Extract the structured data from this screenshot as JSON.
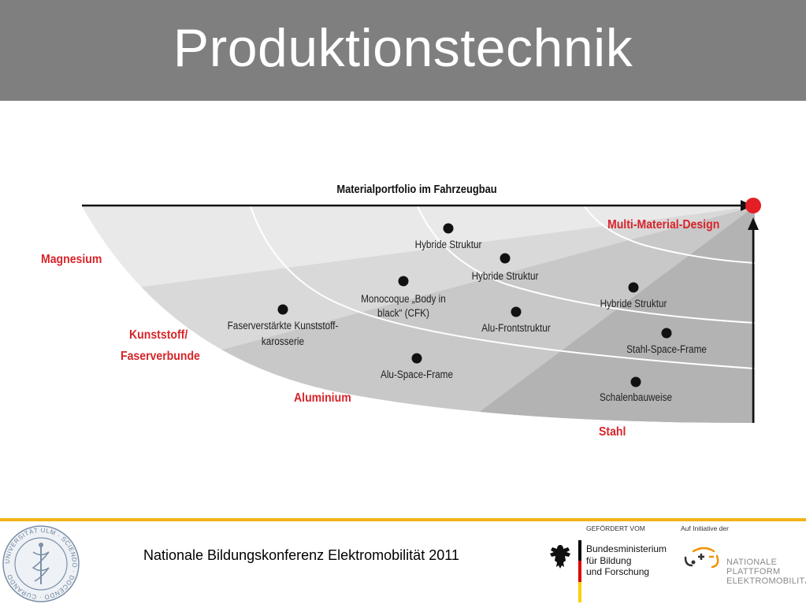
{
  "title": "Produktionstechnik",
  "diagram": {
    "axis_title": "Materialportfolio im Fahrzeugbau",
    "materials": {
      "magnesium": "Magnesium",
      "kunststoff_1": "Kunststoff/",
      "kunststoff_2": "Faserverbunde",
      "aluminium": "Aluminium",
      "stahl": "Stahl",
      "multi": "Multi-Material-Design"
    },
    "points": {
      "hybride_1": "Hybride Struktur",
      "hybride_2": "Hybride Struktur",
      "hybride_3": "Hybride Struktur",
      "monocoque_1": "Monocoque „Body in",
      "monocoque_2": "black“ (CFK)",
      "faser_1": "Faserverstärkte Kunststoff-",
      "faser_2": "karosserie",
      "alu_front": "Alu-Frontstruktur",
      "alu_space": "Alu-Space-Frame",
      "stahl_space": "Stahl-Space-Frame",
      "schalen": "Schalenbauweise"
    },
    "colors": {
      "accent_red": "#d7252b",
      "arrow": "#111111",
      "dot_end": "#e31e24"
    }
  },
  "footer": {
    "conference": "Nationale Bildungskonferenz Elektromobilität 2011",
    "foerder_label": "GEFÖRDERT VOM",
    "ministry_1": "Bundesministerium",
    "ministry_2": "für Bildung",
    "ministry_3": "und Forschung",
    "initiative_label": "Auf Initiative der",
    "npe_1": "NATIONALE",
    "npe_2": "PLATTFORM",
    "npe_3": "ELEKTROMOBILITÄT",
    "seal_text": "UNIVERSITÄT ULM · SCIENDO · DOCENDO · CURANDO"
  }
}
